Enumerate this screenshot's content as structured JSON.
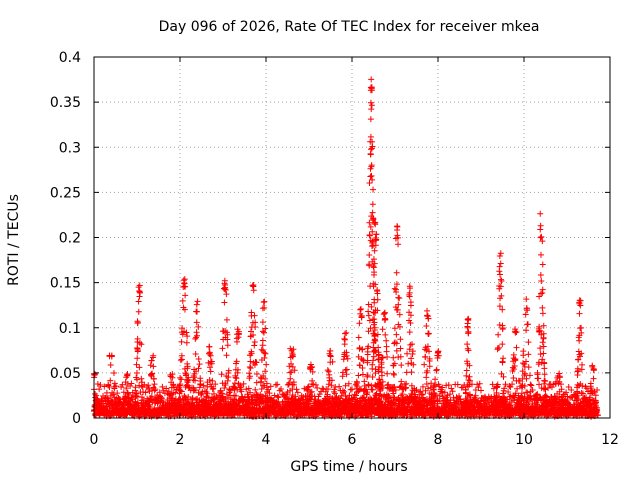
{
  "chart_data": {
    "type": "scatter",
    "title": "Day 096 of 2026, Rate Of TEC Index for receiver mkea",
    "xlabel": "GPS time / hours",
    "ylabel": "ROTI / TECUs",
    "xlim": [
      0,
      12
    ],
    "ylim": [
      0,
      0.4
    ],
    "grid": true,
    "marker": "+",
    "marker_color": "#ff0000",
    "x_ticks": [
      0,
      2,
      4,
      6,
      8,
      10,
      12
    ],
    "x_tick_labels": [
      "0",
      "2",
      "4",
      "6",
      "8",
      "10",
      "12"
    ],
    "y_ticks": [
      0,
      0.05,
      0.1,
      0.15,
      0.2,
      0.25,
      0.3,
      0.35,
      0.4
    ],
    "y_tick_labels": [
      "0",
      "0.05",
      "0.1",
      "0.15",
      "0.2",
      "0.25",
      "0.3",
      "0.35",
      "0.4"
    ],
    "x_data_range": [
      0,
      11.7
    ],
    "bursts": [
      {
        "x": 0.0,
        "peak": 0.055,
        "width": 0.15
      },
      {
        "x": 0.4,
        "peak": 0.07,
        "width": 0.2
      },
      {
        "x": 0.75,
        "peak": 0.05,
        "width": 0.15
      },
      {
        "x": 1.05,
        "peak": 0.15,
        "width": 0.12
      },
      {
        "x": 1.35,
        "peak": 0.07,
        "width": 0.15
      },
      {
        "x": 1.8,
        "peak": 0.05,
        "width": 0.15
      },
      {
        "x": 2.1,
        "peak": 0.162,
        "width": 0.15
      },
      {
        "x": 2.4,
        "peak": 0.13,
        "width": 0.15
      },
      {
        "x": 2.7,
        "peak": 0.08,
        "width": 0.15
      },
      {
        "x": 3.05,
        "peak": 0.158,
        "width": 0.15
      },
      {
        "x": 3.35,
        "peak": 0.1,
        "width": 0.15
      },
      {
        "x": 3.7,
        "peak": 0.15,
        "width": 0.15
      },
      {
        "x": 3.95,
        "peak": 0.13,
        "width": 0.12
      },
      {
        "x": 4.6,
        "peak": 0.077,
        "width": 0.2
      },
      {
        "x": 5.05,
        "peak": 0.06,
        "width": 0.2
      },
      {
        "x": 5.5,
        "peak": 0.075,
        "width": 0.2
      },
      {
        "x": 5.85,
        "peak": 0.095,
        "width": 0.15
      },
      {
        "x": 6.2,
        "peak": 0.125,
        "width": 0.15
      },
      {
        "x": 6.45,
        "peak": 0.382,
        "width": 0.12
      },
      {
        "x": 6.55,
        "peak": 0.225,
        "width": 0.12
      },
      {
        "x": 6.75,
        "peak": 0.12,
        "width": 0.15
      },
      {
        "x": 7.05,
        "peak": 0.215,
        "width": 0.15
      },
      {
        "x": 7.35,
        "peak": 0.15,
        "width": 0.15
      },
      {
        "x": 7.75,
        "peak": 0.12,
        "width": 0.15
      },
      {
        "x": 8.0,
        "peak": 0.075,
        "width": 0.2
      },
      {
        "x": 8.7,
        "peak": 0.113,
        "width": 0.08
      },
      {
        "x": 9.45,
        "peak": 0.183,
        "width": 0.12
      },
      {
        "x": 9.8,
        "peak": 0.1,
        "width": 0.2
      },
      {
        "x": 10.05,
        "peak": 0.135,
        "width": 0.15
      },
      {
        "x": 10.4,
        "peak": 0.228,
        "width": 0.12
      },
      {
        "x": 10.8,
        "peak": 0.05,
        "width": 0.2
      },
      {
        "x": 11.3,
        "peak": 0.133,
        "width": 0.1
      },
      {
        "x": 11.6,
        "peak": 0.06,
        "width": 0.12
      }
    ],
    "baseline_level": 0.012
  }
}
